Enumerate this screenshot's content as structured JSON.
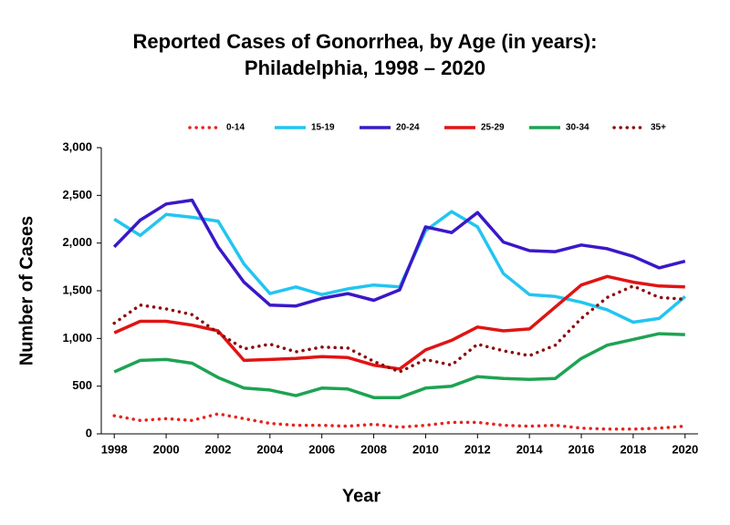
{
  "chart_data": {
    "type": "line",
    "title": [
      "Reported Cases of Gonorrhea, by Age (in years):",
      "Philadelphia, 1998 – 2020"
    ],
    "x_label": "Year",
    "y_label": "Number of Cases",
    "x": [
      1998,
      1999,
      2000,
      2001,
      2002,
      2003,
      2004,
      2005,
      2006,
      2007,
      2008,
      2009,
      2010,
      2011,
      2012,
      2013,
      2014,
      2015,
      2016,
      2017,
      2018,
      2019,
      2020
    ],
    "xlim": [
      1997.5,
      2020.5
    ],
    "xticks": [
      1998,
      2000,
      2002,
      2004,
      2006,
      2008,
      2010,
      2012,
      2014,
      2016,
      2018,
      2020
    ],
    "ylim": [
      0,
      3000
    ],
    "yticks": [
      0,
      500,
      {
        "value": 1000,
        "label": "1,000"
      },
      {
        "value": 1500,
        "label": "1,500"
      },
      {
        "value": 2000,
        "label": "2,000"
      },
      {
        "value": 2500,
        "label": "2,500"
      },
      {
        "value": 3000,
        "label": "3,000"
      }
    ],
    "legend": "top",
    "series": [
      {
        "name": "0-14",
        "color": "#e8231f",
        "style": "dotted",
        "values": [
          190,
          140,
          160,
          140,
          210,
          160,
          110,
          90,
          90,
          80,
          100,
          70,
          90,
          120,
          120,
          90,
          80,
          90,
          60,
          50,
          50,
          60,
          80
        ]
      },
      {
        "name": "15-19",
        "color": "#22c5f0",
        "style": "solid",
        "values": [
          2250,
          2080,
          2300,
          2270,
          2230,
          1780,
          1470,
          1540,
          1460,
          1520,
          1560,
          1540,
          2130,
          2330,
          2170,
          1680,
          1460,
          1440,
          1380,
          1300,
          1170,
          1210,
          1440
        ]
      },
      {
        "name": "20-24",
        "color": "#3a18c8",
        "style": "solid",
        "values": [
          1960,
          2240,
          2410,
          2450,
          1960,
          1590,
          1350,
          1340,
          1420,
          1470,
          1400,
          1510,
          2170,
          2110,
          2320,
          2010,
          1920,
          1910,
          1980,
          1940,
          1860,
          1740,
          1810
        ]
      },
      {
        "name": "25-29",
        "color": "#e01414",
        "style": "solid",
        "values": [
          1060,
          1180,
          1180,
          1140,
          1080,
          770,
          780,
          790,
          810,
          800,
          720,
          680,
          880,
          980,
          1120,
          1080,
          1100,
          1330,
          1560,
          1650,
          1590,
          1550,
          1540
        ]
      },
      {
        "name": "30-34",
        "color": "#1ea352",
        "style": "solid",
        "values": [
          650,
          770,
          780,
          740,
          590,
          480,
          460,
          400,
          480,
          470,
          380,
          380,
          480,
          500,
          600,
          580,
          570,
          580,
          790,
          930,
          990,
          1050,
          1040
        ]
      },
      {
        "name": "35+",
        "color": "#8b0d0d",
        "style": "dotted",
        "values": [
          1160,
          1350,
          1310,
          1250,
          1060,
          890,
          940,
          860,
          910,
          900,
          760,
          650,
          780,
          720,
          940,
          870,
          820,
          930,
          1210,
          1430,
          1550,
          1430,
          1410
        ]
      }
    ]
  }
}
